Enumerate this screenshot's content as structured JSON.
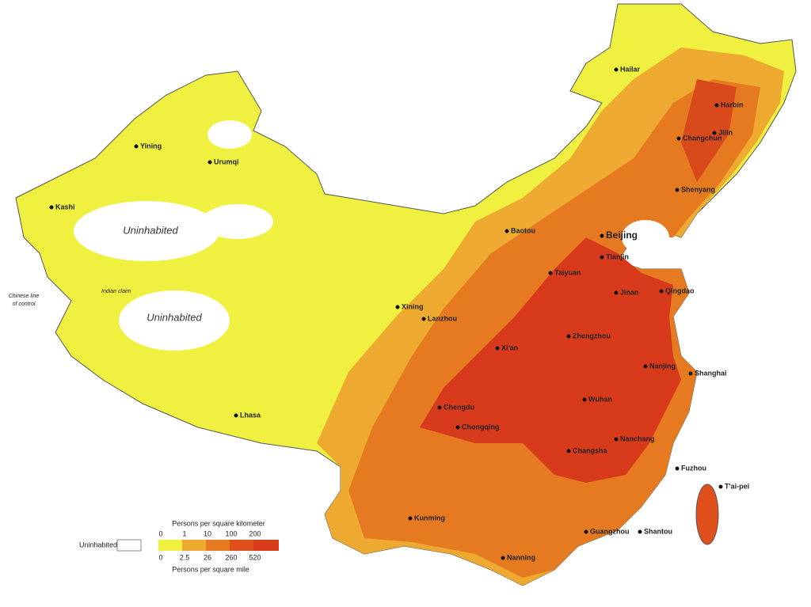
{
  "map": {
    "cities": [
      "Hailar",
      "Harbin",
      "Jilin",
      "Changchun",
      "Shenyang",
      "Yining",
      "Urumqi",
      "Kashi",
      "Baotou",
      "Beijing",
      "Tianjin",
      "Taiyuan",
      "Qingdao",
      "Jinan",
      "Xining",
      "Lanzhou",
      "Xi'an",
      "Zhengzhou",
      "Nanjing",
      "Shanghai",
      "Wuhan",
      "Chengdu",
      "Chongqing",
      "Lhasa",
      "Changsha",
      "Nanchang",
      "Fuzhou",
      "T'ai-pei",
      "Kunming",
      "Guangzhou",
      "Shantou",
      "Nanning"
    ],
    "regions": [
      "Uninhabited",
      "Uninhabited"
    ],
    "annotations": {
      "line_of_control": [
        "Chinese line",
        "of control"
      ],
      "indian_claim": "Indian claim"
    },
    "legend": {
      "uninhabited": "Uninhabited",
      "km_title": "Persons per square kilometer",
      "km_values": [
        0,
        1,
        10,
        100,
        200
      ],
      "mile_title": "Persons per square mile",
      "mile_values": [
        0,
        2.5,
        26,
        260,
        520
      ]
    }
  }
}
